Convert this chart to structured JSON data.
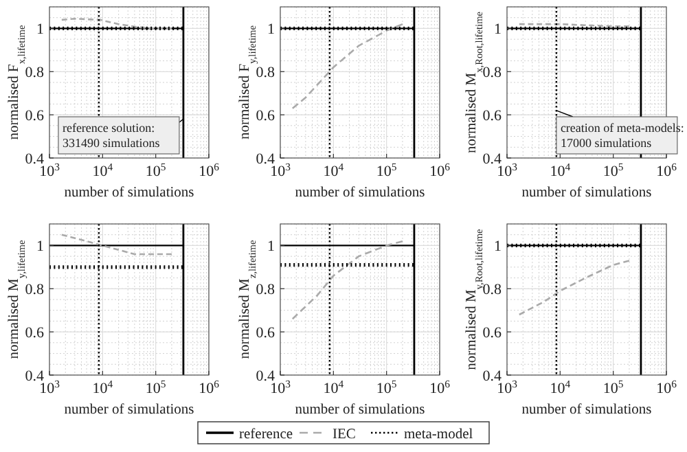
{
  "chart_data": [
    {
      "type": "line",
      "ylabel": "normalised F$_{x,lifetime}$",
      "xlabel": "number of simulations",
      "log": "x",
      "grid": true,
      "legend": "bottom",
      "xlim": [
        1000,
        1000000
      ],
      "xticks": [
        {
          "value": 1000,
          "label": "10$^{3}$"
        },
        {
          "value": 10000,
          "label": "10$^{4}$"
        },
        {
          "value": 100000,
          "label": "10$^{5}$"
        },
        {
          "value": 1000000,
          "label": "10$^{6}$"
        }
      ],
      "ylim": [
        0.4,
        1.1
      ],
      "yticks": [
        0.4,
        0.6,
        0.8,
        1
      ],
      "series": [
        {
          "name": "reference",
          "color": "#000000",
          "line_style": "solid",
          "x": [
            1000,
            331490
          ],
          "values": [
            1,
            1
          ]
        },
        {
          "name": "IEC",
          "color": "#aaaaaa",
          "line_style": "dashed",
          "x": [
            1700,
            3000,
            9000,
            20000,
            50000,
            100000,
            200000
          ],
          "values": [
            1.04,
            1.045,
            1.04,
            1.02,
            1.005,
            1.0,
            1.0
          ]
        },
        {
          "name": "meta-model",
          "color": "#000000",
          "line_style": "dotted",
          "x": [
            1000,
            331490
          ],
          "values": [
            1,
            1
          ]
        }
      ],
      "ref_lines": [
        {
          "axis": "x",
          "value": 331490,
          "color": "#000000",
          "line_style": "solid"
        },
        {
          "axis": "x",
          "value": 8500,
          "color": "#000000",
          "line_style": "dotted"
        }
      ],
      "annotations": [
        {
          "text": "reference solution: 331490 simulations",
          "x": 331490,
          "y": 0.58
        }
      ]
    },
    {
      "type": "line",
      "ylabel": "normalised F$_{y,lifetime}$",
      "xlabel": "number of simulations",
      "log": "x",
      "grid": true,
      "xlim": [
        1000,
        1000000
      ],
      "xticks": [
        {
          "value": 1000,
          "label": "10$^{3}$"
        },
        {
          "value": 10000,
          "label": "10$^{4}$"
        },
        {
          "value": 100000,
          "label": "10$^{5}$"
        },
        {
          "value": 1000000,
          "label": "10$^{6}$"
        }
      ],
      "ylim": [
        0.4,
        1.1
      ],
      "yticks": [
        0.4,
        0.6,
        0.8,
        1
      ],
      "series": [
        {
          "color": "#000000",
          "line_style": "solid",
          "x": [
            1000,
            331490
          ],
          "values": [
            1,
            1
          ]
        },
        {
          "color": "#aaaaaa",
          "line_style": "dashed",
          "x": [
            1700,
            3000,
            10000,
            30000,
            100000,
            200000
          ],
          "values": [
            0.63,
            0.68,
            0.82,
            0.92,
            0.99,
            1.02
          ]
        },
        {
          "color": "#000000",
          "line_style": "dotted",
          "x": [
            1000,
            331490
          ],
          "values": [
            1,
            1
          ]
        }
      ],
      "ref_lines": [
        {
          "axis": "x",
          "value": 331490,
          "color": "#000000",
          "line_style": "solid"
        },
        {
          "axis": "x",
          "value": 8500,
          "color": "#000000",
          "line_style": "dotted"
        }
      ]
    },
    {
      "type": "line",
      "ylabel": "normalised M$_{x,Root,lifetime}$",
      "xlabel": "number of simulations",
      "log": "x",
      "grid": true,
      "xlim": [
        1000,
        1000000
      ],
      "xticks": [
        {
          "value": 1000,
          "label": "10$^{3}$"
        },
        {
          "value": 10000,
          "label": "10$^{4}$"
        },
        {
          "value": 100000,
          "label": "10$^{5}$"
        },
        {
          "value": 1000000,
          "label": "10$^{6}$"
        }
      ],
      "ylim": [
        0.4,
        1.1
      ],
      "yticks": [
        0.4,
        0.6,
        0.8,
        1
      ],
      "series": [
        {
          "color": "#000000",
          "line_style": "solid",
          "x": [
            1000,
            331490
          ],
          "values": [
            1,
            1
          ]
        },
        {
          "color": "#aaaaaa",
          "line_style": "dashed",
          "x": [
            1700,
            10000,
            30000,
            100000,
            200000
          ],
          "values": [
            1.02,
            1.02,
            1.015,
            1.01,
            1.01
          ]
        },
        {
          "color": "#000000",
          "line_style": "dotted",
          "x": [
            1000,
            331490
          ],
          "values": [
            1,
            1
          ]
        }
      ],
      "ref_lines": [
        {
          "axis": "x",
          "value": 331490,
          "color": "#000000",
          "line_style": "solid"
        },
        {
          "axis": "x",
          "value": 8500,
          "color": "#000000",
          "line_style": "dotted"
        }
      ],
      "annotations": [
        {
          "text": "creation of meta-models: 17000 simulations",
          "x": 8500,
          "y": 0.62
        }
      ]
    },
    {
      "type": "line",
      "ylabel": "normalised M$_{y,lifetime}$",
      "xlabel": "number of simulations",
      "log": "x",
      "grid": true,
      "xlim": [
        1000,
        1000000
      ],
      "xticks": [
        {
          "value": 1000,
          "label": "10$^{3}$"
        },
        {
          "value": 10000,
          "label": "10$^{4}$"
        },
        {
          "value": 100000,
          "label": "10$^{5}$"
        },
        {
          "value": 1000000,
          "label": "10$^{6}$"
        }
      ],
      "ylim": [
        0.4,
        1.1
      ],
      "yticks": [
        0.4,
        0.6,
        0.8,
        1
      ],
      "series": [
        {
          "color": "#000000",
          "line_style": "solid",
          "x": [
            1000,
            331490
          ],
          "values": [
            1,
            1
          ]
        },
        {
          "color": "#aaaaaa",
          "line_style": "dashed",
          "x": [
            1700,
            5000,
            10000,
            20000,
            40000,
            100000,
            200000
          ],
          "values": [
            1.05,
            1.02,
            1.0,
            0.98,
            0.96,
            0.96,
            0.96
          ]
        },
        {
          "color": "#000000",
          "line_style": "dotted",
          "x": [
            1000,
            331490
          ],
          "values": [
            0.9,
            0.9
          ]
        }
      ],
      "ref_lines": [
        {
          "axis": "x",
          "value": 331490,
          "color": "#000000",
          "line_style": "solid"
        },
        {
          "axis": "x",
          "value": 8500,
          "color": "#000000",
          "line_style": "dotted"
        }
      ]
    },
    {
      "type": "line",
      "ylabel": "normalised M$_{z,lifetime}$",
      "xlabel": "number of simulations",
      "log": "x",
      "grid": true,
      "xlim": [
        1000,
        1000000
      ],
      "xticks": [
        {
          "value": 1000,
          "label": "10$^{3}$"
        },
        {
          "value": 10000,
          "label": "10$^{4}$"
        },
        {
          "value": 100000,
          "label": "10$^{5}$"
        },
        {
          "value": 1000000,
          "label": "10$^{6}$"
        }
      ],
      "ylim": [
        0.4,
        1.1
      ],
      "yticks": [
        0.4,
        0.6,
        0.8,
        1
      ],
      "series": [
        {
          "color": "#000000",
          "line_style": "solid",
          "x": [
            1000,
            331490
          ],
          "values": [
            1,
            1
          ]
        },
        {
          "color": "#aaaaaa",
          "line_style": "dashed",
          "x": [
            1700,
            5000,
            10000,
            30000,
            100000,
            200000
          ],
          "values": [
            0.66,
            0.77,
            0.86,
            0.95,
            1.0,
            1.02
          ]
        },
        {
          "color": "#000000",
          "line_style": "dotted",
          "x": [
            1000,
            331490
          ],
          "values": [
            0.91,
            0.91
          ]
        }
      ],
      "ref_lines": [
        {
          "axis": "x",
          "value": 331490,
          "color": "#000000",
          "line_style": "solid"
        },
        {
          "axis": "x",
          "value": 8500,
          "color": "#000000",
          "line_style": "dotted"
        }
      ]
    },
    {
      "type": "line",
      "ylabel": "normalised M$_{y,Root,lifetime}$",
      "xlabel": "number of simulations",
      "log": "x",
      "grid": true,
      "xlim": [
        1000,
        1000000
      ],
      "xticks": [
        {
          "value": 1000,
          "label": "10$^{3}$"
        },
        {
          "value": 10000,
          "label": "10$^{4}$"
        },
        {
          "value": 100000,
          "label": "10$^{5}$"
        },
        {
          "value": 1000000,
          "label": "10$^{6}$"
        }
      ],
      "ylim": [
        0.4,
        1.1
      ],
      "yticks": [
        0.4,
        0.6,
        0.8,
        1
      ],
      "series": [
        {
          "color": "#000000",
          "line_style": "solid",
          "x": [
            1000,
            331490
          ],
          "values": [
            1,
            1
          ]
        },
        {
          "color": "#aaaaaa",
          "line_style": "dashed",
          "x": [
            1700,
            5000,
            10000,
            30000,
            100000,
            200000
          ],
          "values": [
            0.68,
            0.74,
            0.79,
            0.85,
            0.91,
            0.93
          ]
        },
        {
          "color": "#000000",
          "line_style": "dotted",
          "x": [
            1000,
            331490
          ],
          "values": [
            1,
            1
          ]
        }
      ],
      "ref_lines": [
        {
          "axis": "x",
          "value": 331490,
          "color": "#000000",
          "line_style": "solid"
        },
        {
          "axis": "x",
          "value": 8500,
          "color": "#000000",
          "line_style": "dotted"
        }
      ]
    }
  ]
}
